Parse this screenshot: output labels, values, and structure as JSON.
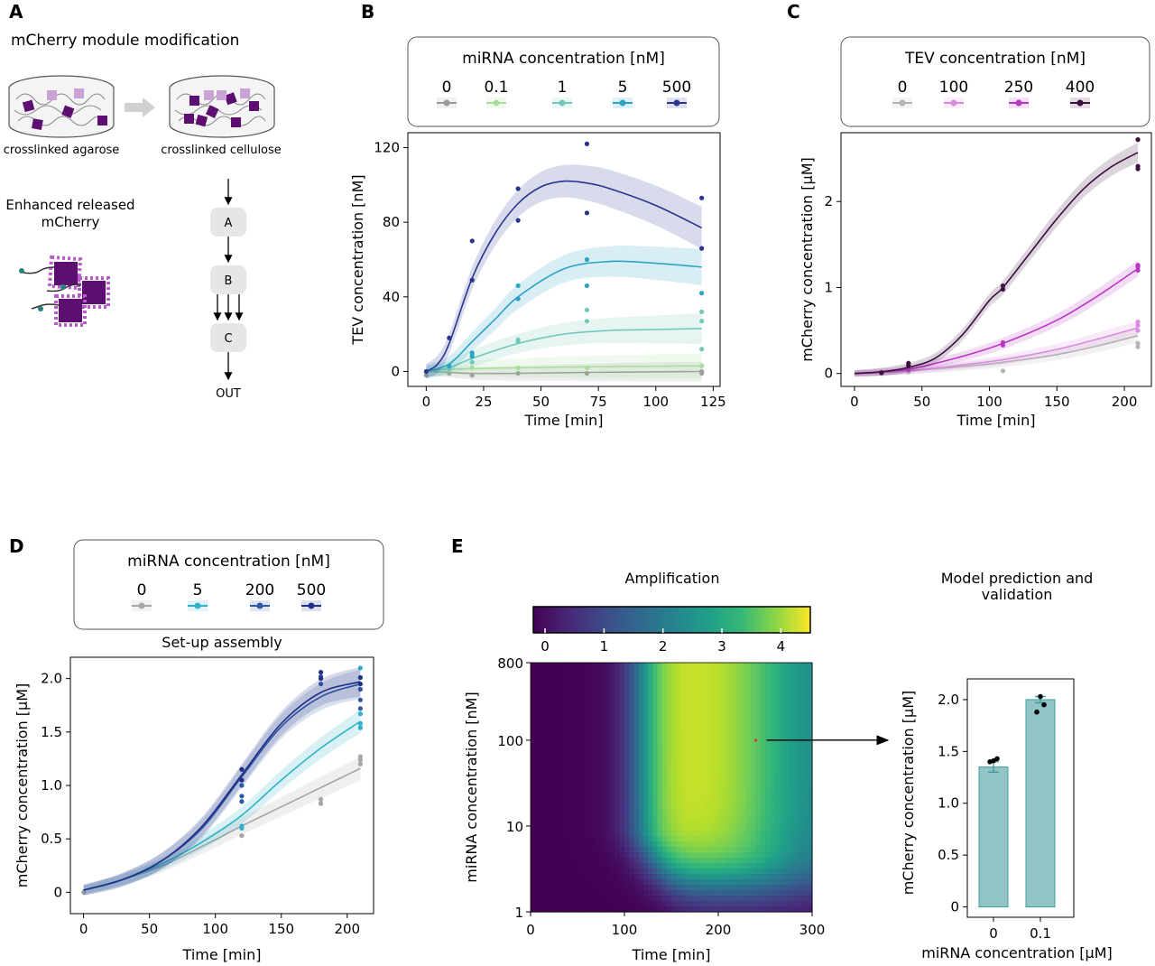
{
  "figure": {
    "panels": {
      "A": "A",
      "B": "B",
      "C": "C",
      "D": "D",
      "E": "E"
    }
  },
  "panel_a": {
    "title": "mCherry module modification",
    "left_label": "crosslinked agarose",
    "right_label": "crosslinked cellulose",
    "released_label_line1": "Enhanced released",
    "released_label_line2": "mCherry",
    "flow_nodes": [
      "A",
      "B",
      "C"
    ],
    "flow_out": "OUT",
    "colors": {
      "cube": "#5c0f70",
      "cube_light": "#c9a3d3",
      "node_bg": "#e6e6e6",
      "arrow": "#d0d0d0"
    }
  },
  "chart_data": [
    {
      "id": "B",
      "type": "line",
      "xlabel": "Time [min]",
      "ylabel": "TEV concentration [nM]",
      "xlim": [
        -8,
        128
      ],
      "ylim": [
        -8,
        128
      ],
      "xticks": [
        0,
        25,
        50,
        75,
        100,
        125
      ],
      "yticks": [
        0,
        40,
        80,
        120
      ],
      "legend_title": "miRNA concentration [nM]",
      "legend_position": "top",
      "series": [
        {
          "name": "0",
          "color": "#999999",
          "x": [
            0,
            10,
            20,
            40,
            70,
            120
          ],
          "y": [
            0,
            -0.5,
            -1,
            -1,
            -0.5,
            0
          ],
          "points": [
            [
              0,
              -2
            ],
            [
              10,
              -1
            ],
            [
              20,
              -2
            ],
            [
              40,
              -1
            ],
            [
              70,
              -1
            ],
            [
              120,
              -1
            ],
            [
              120,
              0
            ]
          ],
          "band": 4
        },
        {
          "name": "0.1",
          "color": "#a8dd9c",
          "x": [
            0,
            10,
            20,
            40,
            70,
            120
          ],
          "y": [
            0,
            1,
            1.5,
            2,
            2.5,
            3
          ],
          "points": [
            [
              10,
              1
            ],
            [
              20,
              2
            ],
            [
              40,
              2
            ],
            [
              70,
              2
            ],
            [
              120,
              3
            ]
          ],
          "band": 5
        },
        {
          "name": "1",
          "color": "#72c9b9",
          "x": [
            0,
            10,
            20,
            40,
            60,
            80,
            100,
            120
          ],
          "y": [
            0,
            2,
            7,
            15,
            20,
            22,
            22.5,
            23
          ],
          "points": [
            [
              10,
              2
            ],
            [
              20,
              5
            ],
            [
              20,
              9
            ],
            [
              40,
              16
            ],
            [
              40,
              17
            ],
            [
              70,
              27
            ],
            [
              70,
              33
            ],
            [
              120,
              12
            ],
            [
              120,
              27
            ],
            [
              120,
              32
            ]
          ],
          "band": 6
        },
        {
          "name": "5",
          "color": "#2aa3c4",
          "x": [
            0,
            10,
            20,
            30,
            40,
            60,
            80,
            100,
            120
          ],
          "y": [
            0,
            4,
            16,
            28,
            40,
            55,
            59,
            58,
            56
          ],
          "points": [
            [
              10,
              3
            ],
            [
              20,
              8
            ],
            [
              20,
              10
            ],
            [
              40,
              39
            ],
            [
              40,
              46
            ],
            [
              70,
              46
            ],
            [
              70,
              60
            ],
            [
              120,
              42
            ]
          ],
          "band": 7
        },
        {
          "name": "500",
          "color": "#27358f",
          "x": [
            0,
            5,
            10,
            20,
            30,
            40,
            50,
            60,
            70,
            80,
            100,
            120
          ],
          "y": [
            0,
            4,
            15,
            50,
            74,
            90,
            99,
            102,
            101,
            98,
            89,
            77
          ],
          "points": [
            [
              10,
              18
            ],
            [
              20,
              49
            ],
            [
              20,
              70
            ],
            [
              40,
              81
            ],
            [
              40,
              98
            ],
            [
              70,
              85
            ],
            [
              70,
              122
            ],
            [
              120,
              66
            ],
            [
              120,
              93
            ],
            [
              0,
              0
            ]
          ],
          "band": 8
        }
      ]
    },
    {
      "id": "C",
      "type": "line",
      "xlabel": "Time [min]",
      "ylabel": "mCherry concentration [µM]",
      "xlim": [
        -10,
        220
      ],
      "ylim": [
        -0.15,
        2.8
      ],
      "xticks": [
        0,
        50,
        100,
        150,
        200
      ],
      "yticks": [
        0,
        1,
        2
      ],
      "legend_title": "TEV concentration [nM]",
      "legend_position": "top",
      "series": [
        {
          "name": "0",
          "color": "#b3b3b3",
          "x": [
            0,
            40,
            80,
            110,
            150,
            180,
            210
          ],
          "y": [
            0,
            0.03,
            0.08,
            0.13,
            0.22,
            0.32,
            0.44
          ],
          "points": [
            [
              20,
              0
            ],
            [
              40,
              0.02
            ],
            [
              110,
              0.03
            ],
            [
              210,
              0.31
            ],
            [
              210,
              0.35
            ]
          ],
          "band": 0.06
        },
        {
          "name": "100",
          "color": "#d98be0",
          "x": [
            0,
            40,
            80,
            110,
            150,
            180,
            210
          ],
          "y": [
            0,
            0.03,
            0.1,
            0.16,
            0.28,
            0.4,
            0.53
          ],
          "points": [
            [
              210,
              0.5
            ],
            [
              210,
              0.56
            ],
            [
              210,
              0.6
            ]
          ],
          "band": 0.06
        },
        {
          "name": "250",
          "color": "#b837c4",
          "x": [
            0,
            40,
            80,
            110,
            150,
            180,
            210
          ],
          "y": [
            0,
            0.05,
            0.2,
            0.35,
            0.62,
            0.9,
            1.22
          ],
          "points": [
            [
              40,
              0.05
            ],
            [
              110,
              0.33
            ],
            [
              110,
              0.36
            ],
            [
              210,
              1.2
            ],
            [
              210,
              1.24
            ],
            [
              210,
              1.26
            ]
          ],
          "band": 0.07
        },
        {
          "name": "400",
          "color": "#3b0f3f",
          "x": [
            0,
            20,
            40,
            60,
            80,
            100,
            110,
            130,
            150,
            170,
            190,
            210
          ],
          "y": [
            0,
            0.02,
            0.07,
            0.18,
            0.45,
            0.85,
            1.0,
            1.4,
            1.8,
            2.15,
            2.4,
            2.57
          ],
          "points": [
            [
              20,
              0.01
            ],
            [
              40,
              0.09
            ],
            [
              40,
              0.12
            ],
            [
              110,
              0.98
            ],
            [
              110,
              1.02
            ],
            [
              210,
              2.38
            ],
            [
              210,
              2.41
            ],
            [
              210,
              2.72
            ]
          ],
          "band": 0.08
        }
      ]
    },
    {
      "id": "D",
      "type": "line",
      "title": "Set-up assembly",
      "xlabel": "Time [min]",
      "ylabel": "mCherry concentration [µM]",
      "xlim": [
        -10,
        220
      ],
      "ylim": [
        -0.2,
        2.2
      ],
      "xticks": [
        0,
        50,
        100,
        150,
        200
      ],
      "yticks": [
        0,
        0.5,
        1.0,
        1.5,
        2.0
      ],
      "ytick_labels": [
        "0",
        "0.5",
        "1.0",
        "1.5",
        "2.0"
      ],
      "legend_title": "miRNA concentration [nM]",
      "legend_position": "top",
      "series": [
        {
          "name": "0",
          "color": "#a6a6a6",
          "x": [
            0,
            30,
            60,
            90,
            120,
            150,
            180,
            210
          ],
          "y": [
            0.02,
            0.12,
            0.25,
            0.43,
            0.62,
            0.8,
            0.98,
            1.16
          ],
          "points": [
            [
              0,
              0
            ],
            [
              120,
              0.53
            ],
            [
              120,
              0.6
            ],
            [
              180,
              0.83
            ],
            [
              180,
              0.87
            ],
            [
              210,
              1.2
            ],
            [
              210,
              1.24
            ],
            [
              210,
              1.27
            ]
          ],
          "band": 0.08
        },
        {
          "name": "5",
          "color": "#2fb2c9",
          "x": [
            0,
            30,
            60,
            90,
            120,
            150,
            180,
            210
          ],
          "y": [
            0.02,
            0.12,
            0.27,
            0.47,
            0.72,
            1.05,
            1.35,
            1.6
          ],
          "points": [
            [
              120,
              0.6
            ],
            [
              120,
              0.62
            ],
            [
              210,
              1.54
            ],
            [
              210,
              1.58
            ],
            [
              210,
              1.67
            ],
            [
              210,
              2.1
            ]
          ],
          "band": 0.08
        },
        {
          "name": "200",
          "color": "#2b5aa3",
          "x": [
            0,
            30,
            60,
            90,
            120,
            150,
            180,
            210
          ],
          "y": [
            0.02,
            0.12,
            0.3,
            0.6,
            1.08,
            1.55,
            1.83,
            1.95
          ],
          "points": [
            [
              120,
              0.85
            ],
            [
              120,
              0.9
            ],
            [
              120,
              1.0
            ],
            [
              180,
              1.95
            ],
            [
              180,
              2.02
            ],
            [
              210,
              1.72
            ],
            [
              210,
              1.8
            ],
            [
              210,
              1.9
            ]
          ],
          "band": 0.1
        },
        {
          "name": "500",
          "color": "#232f86",
          "x": [
            0,
            30,
            60,
            90,
            120,
            150,
            180,
            210
          ],
          "y": [
            0.02,
            0.12,
            0.3,
            0.62,
            1.1,
            1.58,
            1.87,
            1.97
          ],
          "points": [
            [
              120,
              1.05
            ],
            [
              120,
              1.15
            ],
            [
              180,
              2.0
            ],
            [
              180,
              2.06
            ],
            [
              210,
              1.95
            ],
            [
              210,
              2.01
            ]
          ],
          "band": 0.1
        }
      ]
    },
    {
      "id": "E-heatmap",
      "type": "heatmap",
      "title": "Amplification",
      "xlabel": "Time [min]",
      "ylabel": "miRNA concentration [nM]",
      "xlim": [
        0,
        300
      ],
      "ylim": [
        1,
        800
      ],
      "yscale": "log",
      "xticks": [
        0,
        100,
        200,
        300
      ],
      "yticks": [
        1,
        10,
        100,
        800
      ],
      "colorbar_range": [
        -0.2,
        4.5
      ],
      "colorbar_ticks": [
        0,
        1,
        2,
        3,
        4
      ],
      "colormap": "viridis",
      "peak_time": 175,
      "peak_value": 4.5,
      "highlight_point": {
        "x": 240,
        "y": 100
      }
    },
    {
      "id": "E-bar",
      "type": "bar",
      "title": "Model prediction and\nvalidation",
      "title_lines": [
        "Model prediction and",
        "validation"
      ],
      "xlabel": "miRNA concentration [µM]",
      "ylabel": "mCherry concentration [µM]",
      "categories": [
        "0",
        "0.1"
      ],
      "values": [
        1.35,
        2.0
      ],
      "errors": [
        0.05,
        0.03
      ],
      "points": [
        [
          1.4,
          1.43,
          1.41
        ],
        [
          1.88,
          1.95,
          2.03
        ]
      ],
      "ylim": [
        -0.1,
        2.2
      ],
      "yticks": [
        0,
        0.5,
        1.0,
        1.5,
        2.0
      ],
      "ytick_labels": [
        "0",
        "0.5",
        "1.0",
        "1.5",
        "2.0"
      ],
      "color": "#92c3c5",
      "edge_color": "#3f9da0"
    }
  ]
}
